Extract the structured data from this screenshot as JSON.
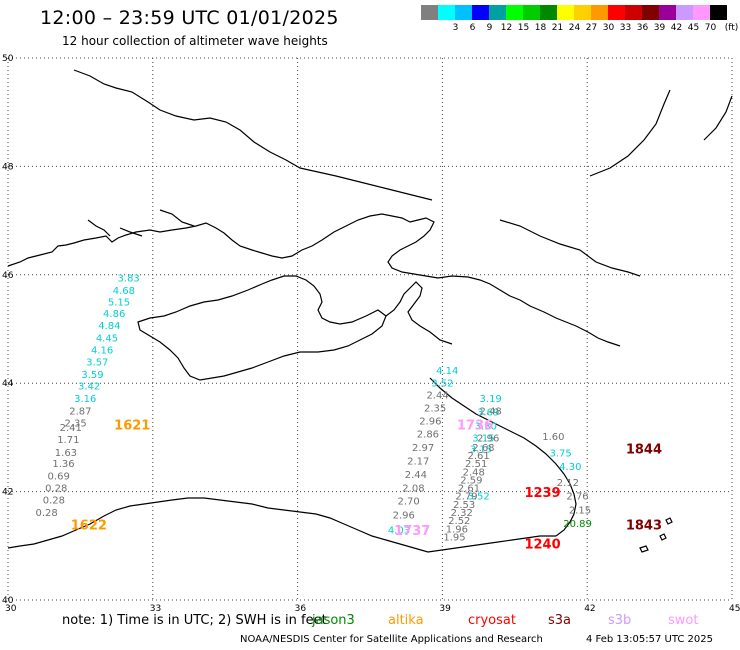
{
  "header": {
    "title": "12:00 – 23:59 UTC 01/01/2025",
    "subtitle": "12 hour collection of altimeter wave heights"
  },
  "legend": {
    "unit": "(ft)",
    "items": [
      {
        "label": "",
        "color": "#808080"
      },
      {
        "label": "3",
        "color": "#00ffff"
      },
      {
        "label": "6",
        "color": "#00c0ff"
      },
      {
        "label": "9",
        "color": "#0000ff"
      },
      {
        "label": "12",
        "color": "#00a0a0"
      },
      {
        "label": "15",
        "color": "#00ff00"
      },
      {
        "label": "18",
        "color": "#00cc00"
      },
      {
        "label": "21",
        "color": "#008800"
      },
      {
        "label": "24",
        "color": "#ffff00"
      },
      {
        "label": "27",
        "color": "#ffd000"
      },
      {
        "label": "30",
        "color": "#ff9900"
      },
      {
        "label": "33",
        "color": "#ff0000"
      },
      {
        "label": "36",
        "color": "#cc0000"
      },
      {
        "label": "39",
        "color": "#800000"
      },
      {
        "label": "42",
        "color": "#990099"
      },
      {
        "label": "45",
        "color": "#cc99ff"
      },
      {
        "label": "70",
        "color": "#ff99ff"
      },
      {
        "label": "",
        "color": "#000000"
      }
    ]
  },
  "axes": {
    "lat_labels": [
      "40",
      "42",
      "44",
      "46",
      "48",
      "50"
    ],
    "lon_labels": [
      "30",
      "33",
      "36",
      "39",
      "42",
      "45"
    ]
  },
  "tracks": [
    {
      "color": "#00d0d0",
      "values": [
        {
          "lon": 32.5,
          "lat": 45.88,
          "v": "3.83"
        },
        {
          "lon": 32.4,
          "lat": 45.65,
          "v": "4.68"
        },
        {
          "lon": 32.3,
          "lat": 45.43,
          "v": "5.15"
        },
        {
          "lon": 32.2,
          "lat": 45.22,
          "v": "4.86"
        },
        {
          "lon": 32.1,
          "lat": 45.0,
          "v": "4.84"
        },
        {
          "lon": 32.05,
          "lat": 44.77,
          "v": "4.45"
        },
        {
          "lon": 31.95,
          "lat": 44.55,
          "v": "4.16"
        },
        {
          "lon": 31.85,
          "lat": 44.33,
          "v": "3.57"
        },
        {
          "lon": 31.75,
          "lat": 44.1,
          "v": "3.59"
        },
        {
          "lon": 31.68,
          "lat": 43.88,
          "v": "3.42"
        },
        {
          "lon": 31.6,
          "lat": 43.65,
          "v": "3.16"
        }
      ]
    },
    {
      "color": "#707070",
      "values": [
        {
          "lon": 31.5,
          "lat": 43.42,
          "v": "2.87"
        },
        {
          "lon": 31.4,
          "lat": 43.2,
          "v": "2.35"
        },
        {
          "lon": 31.3,
          "lat": 43.12,
          "v": "2.41"
        },
        {
          "lon": 31.25,
          "lat": 42.9,
          "v": "1.71"
        },
        {
          "lon": 31.2,
          "lat": 42.66,
          "v": "1.63"
        },
        {
          "lon": 31.15,
          "lat": 42.45,
          "v": "1.36"
        },
        {
          "lon": 31.05,
          "lat": 42.22,
          "v": "0.69"
        },
        {
          "lon": 31.0,
          "lat": 42.0,
          "v": "0.28"
        },
        {
          "lon": 30.95,
          "lat": 41.78,
          "v": "0.28"
        },
        {
          "lon": 30.8,
          "lat": 41.55,
          "v": "0.28"
        }
      ]
    },
    {
      "color": "#00d0d0",
      "values": [
        {
          "lon": 39.1,
          "lat": 44.17,
          "v": "4.14"
        },
        {
          "lon": 39.0,
          "lat": 43.94,
          "v": "3.52"
        },
        {
          "lon": 40.0,
          "lat": 43.65,
          "v": "3.19"
        },
        {
          "lon": 39.95,
          "lat": 43.4,
          "v": "3.69"
        },
        {
          "lon": 39.9,
          "lat": 43.15,
          "v": "3.30"
        },
        {
          "lon": 39.85,
          "lat": 42.92,
          "v": "3.15"
        },
        {
          "lon": 39.8,
          "lat": 42.72,
          "v": "3.15"
        },
        {
          "lon": 39.75,
          "lat": 41.85,
          "v": "3.52"
        },
        {
          "lon": 38.1,
          "lat": 41.23,
          "v": "4.03"
        },
        {
          "lon": 41.45,
          "lat": 42.65,
          "v": "3.75"
        },
        {
          "lon": 41.65,
          "lat": 42.4,
          "v": "4.30"
        }
      ]
    },
    {
      "color": "#707070",
      "values": [
        {
          "lon": 38.9,
          "lat": 43.72,
          "v": "2.44"
        },
        {
          "lon": 38.85,
          "lat": 43.48,
          "v": "2.35"
        },
        {
          "lon": 38.75,
          "lat": 43.24,
          "v": "2.96"
        },
        {
          "lon": 38.7,
          "lat": 43.0,
          "v": "2.86"
        },
        {
          "lon": 38.6,
          "lat": 42.75,
          "v": "2.97"
        },
        {
          "lon": 38.5,
          "lat": 42.5,
          "v": "2.17"
        },
        {
          "lon": 38.45,
          "lat": 42.25,
          "v": "2.44"
        },
        {
          "lon": 38.4,
          "lat": 42.0,
          "v": "2.08"
        },
        {
          "lon": 38.3,
          "lat": 41.76,
          "v": "2.70"
        },
        {
          "lon": 38.2,
          "lat": 41.5,
          "v": "2.96"
        },
        {
          "lon": 40.0,
          "lat": 43.42,
          "v": "2.48"
        },
        {
          "lon": 39.95,
          "lat": 42.92,
          "v": "2.96"
        },
        {
          "lon": 39.85,
          "lat": 42.75,
          "v": "2.68"
        },
        {
          "lon": 39.75,
          "lat": 42.6,
          "v": "2.61"
        },
        {
          "lon": 39.7,
          "lat": 42.45,
          "v": "2.51"
        },
        {
          "lon": 39.65,
          "lat": 42.3,
          "v": "2.48"
        },
        {
          "lon": 39.6,
          "lat": 42.15,
          "v": "2.59"
        },
        {
          "lon": 39.55,
          "lat": 42.0,
          "v": "2.61"
        },
        {
          "lon": 39.5,
          "lat": 41.85,
          "v": "2.79"
        },
        {
          "lon": 39.45,
          "lat": 41.7,
          "v": "2.53"
        },
        {
          "lon": 39.4,
          "lat": 41.55,
          "v": "2.32"
        },
        {
          "lon": 39.35,
          "lat": 41.4,
          "v": "2.52"
        },
        {
          "lon": 39.3,
          "lat": 41.25,
          "v": "1.96"
        },
        {
          "lon": 39.25,
          "lat": 41.1,
          "v": "1.95"
        },
        {
          "lon": 41.3,
          "lat": 42.95,
          "v": "1.60"
        },
        {
          "lon": 41.6,
          "lat": 42.1,
          "v": "2.12"
        },
        {
          "lon": 41.8,
          "lat": 41.85,
          "v": "2.76"
        },
        {
          "lon": 41.85,
          "lat": 41.6,
          "v": "2.15"
        }
      ]
    },
    {
      "color": "#008800",
      "values": [
        {
          "lon": 41.8,
          "lat": 41.35,
          "v": "20.89"
        }
      ]
    }
  ],
  "time_labels": [
    {
      "text": "1621",
      "lon": 32.2,
      "lat": 43.15,
      "color": "#ff9900"
    },
    {
      "text": "1622",
      "lon": 31.3,
      "lat": 41.3,
      "color": "#ff9900"
    },
    {
      "text": "1736",
      "lon": 39.3,
      "lat": 43.15,
      "color": "#ff99ff"
    },
    {
      "text": "1737",
      "lon": 38.0,
      "lat": 41.2,
      "color": "#ff99ff"
    },
    {
      "text": "1239",
      "lon": 40.7,
      "lat": 41.9,
      "color": "#ff0000"
    },
    {
      "text": "1240",
      "lon": 40.7,
      "lat": 40.95,
      "color": "#ff0000"
    },
    {
      "text": "1844",
      "lon": 42.8,
      "lat": 42.7,
      "color": "#800000"
    },
    {
      "text": "1843",
      "lon": 42.8,
      "lat": 41.3,
      "color": "#800000"
    }
  ],
  "footer": {
    "note": "note: 1) Time is in UTC; 2) SWH is in feet",
    "satellites": [
      {
        "name": "jason3",
        "color": "#008800"
      },
      {
        "name": "altika",
        "color": "#ff9900"
      },
      {
        "name": "cryosat",
        "color": "#ff0000"
      },
      {
        "name": "s3a",
        "color": "#800000"
      },
      {
        "name": "s3b",
        "color": "#cc99ff"
      },
      {
        "name": "swot",
        "color": "#ff99ff"
      }
    ],
    "credit": "NOAA/NESDIS Center for Satellite Applications and Research",
    "timestamp": "4 Feb 13:05:57 UTC 2025"
  }
}
